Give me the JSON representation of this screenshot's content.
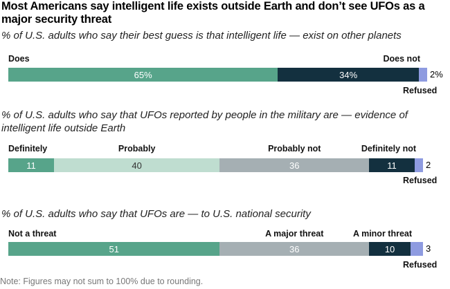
{
  "title": "Most Americans say intelligent life exists outside Earth and don’t see UFOs as a major security threat",
  "note": "Note: Figures may not sum to 100% due to rounding.",
  "colors": {
    "dark_green": "#57a48a",
    "light_green": "#bfddd0",
    "gray": "#a5afb3",
    "navy": "#13303f",
    "refused": "#8e9be0"
  },
  "chart_data": [
    {
      "type": "bar",
      "title": "% of U.S. adults who say their best guess is that intelligent life — exist on other planets",
      "series": [
        {
          "name": "Does",
          "value": 65,
          "label": "65%",
          "color": "#57a48a",
          "text_color": "#ffffff"
        },
        {
          "name": "Does not",
          "value": 34,
          "label": "34%",
          "color": "#13303f",
          "text_color": "#ffffff"
        },
        {
          "name": "Refused",
          "value": 2,
          "label": "2%",
          "color": "#8e9be0",
          "text_color": "#000000"
        }
      ]
    },
    {
      "type": "bar",
      "title": "% of U.S. adults who say that UFOs reported by people in the military are — evidence of intelligent life outside Earth",
      "series": [
        {
          "name": "Definitely",
          "value": 11,
          "label": "11",
          "color": "#57a48a",
          "text_color": "#ffffff"
        },
        {
          "name": "Probably",
          "value": 40,
          "label": "40",
          "color": "#bfddd0",
          "text_color": "#333333"
        },
        {
          "name": "Probably not",
          "value": 36,
          "label": "36",
          "color": "#a5afb3",
          "text_color": "#ffffff"
        },
        {
          "name": "Definitely not",
          "value": 11,
          "label": "11",
          "color": "#13303f",
          "text_color": "#ffffff"
        },
        {
          "name": "Refused",
          "value": 2,
          "label": "2",
          "color": "#8e9be0",
          "text_color": "#000000"
        }
      ]
    },
    {
      "type": "bar",
      "title": "% of U.S. adults who say that UFOs are — to U.S. national security",
      "series": [
        {
          "name": "Not a threat",
          "value": 51,
          "label": "51",
          "color": "#57a48a",
          "text_color": "#ffffff"
        },
        {
          "name": "A major threat",
          "value": 36,
          "label": "36",
          "color": "#a5afb3",
          "text_color": "#ffffff"
        },
        {
          "name": "A minor threat",
          "value": 10,
          "label": "10",
          "color": "#13303f",
          "text_color": "#ffffff"
        },
        {
          "name": "Refused",
          "value": 3,
          "label": "3",
          "color": "#8e9be0",
          "text_color": "#000000"
        }
      ]
    }
  ]
}
